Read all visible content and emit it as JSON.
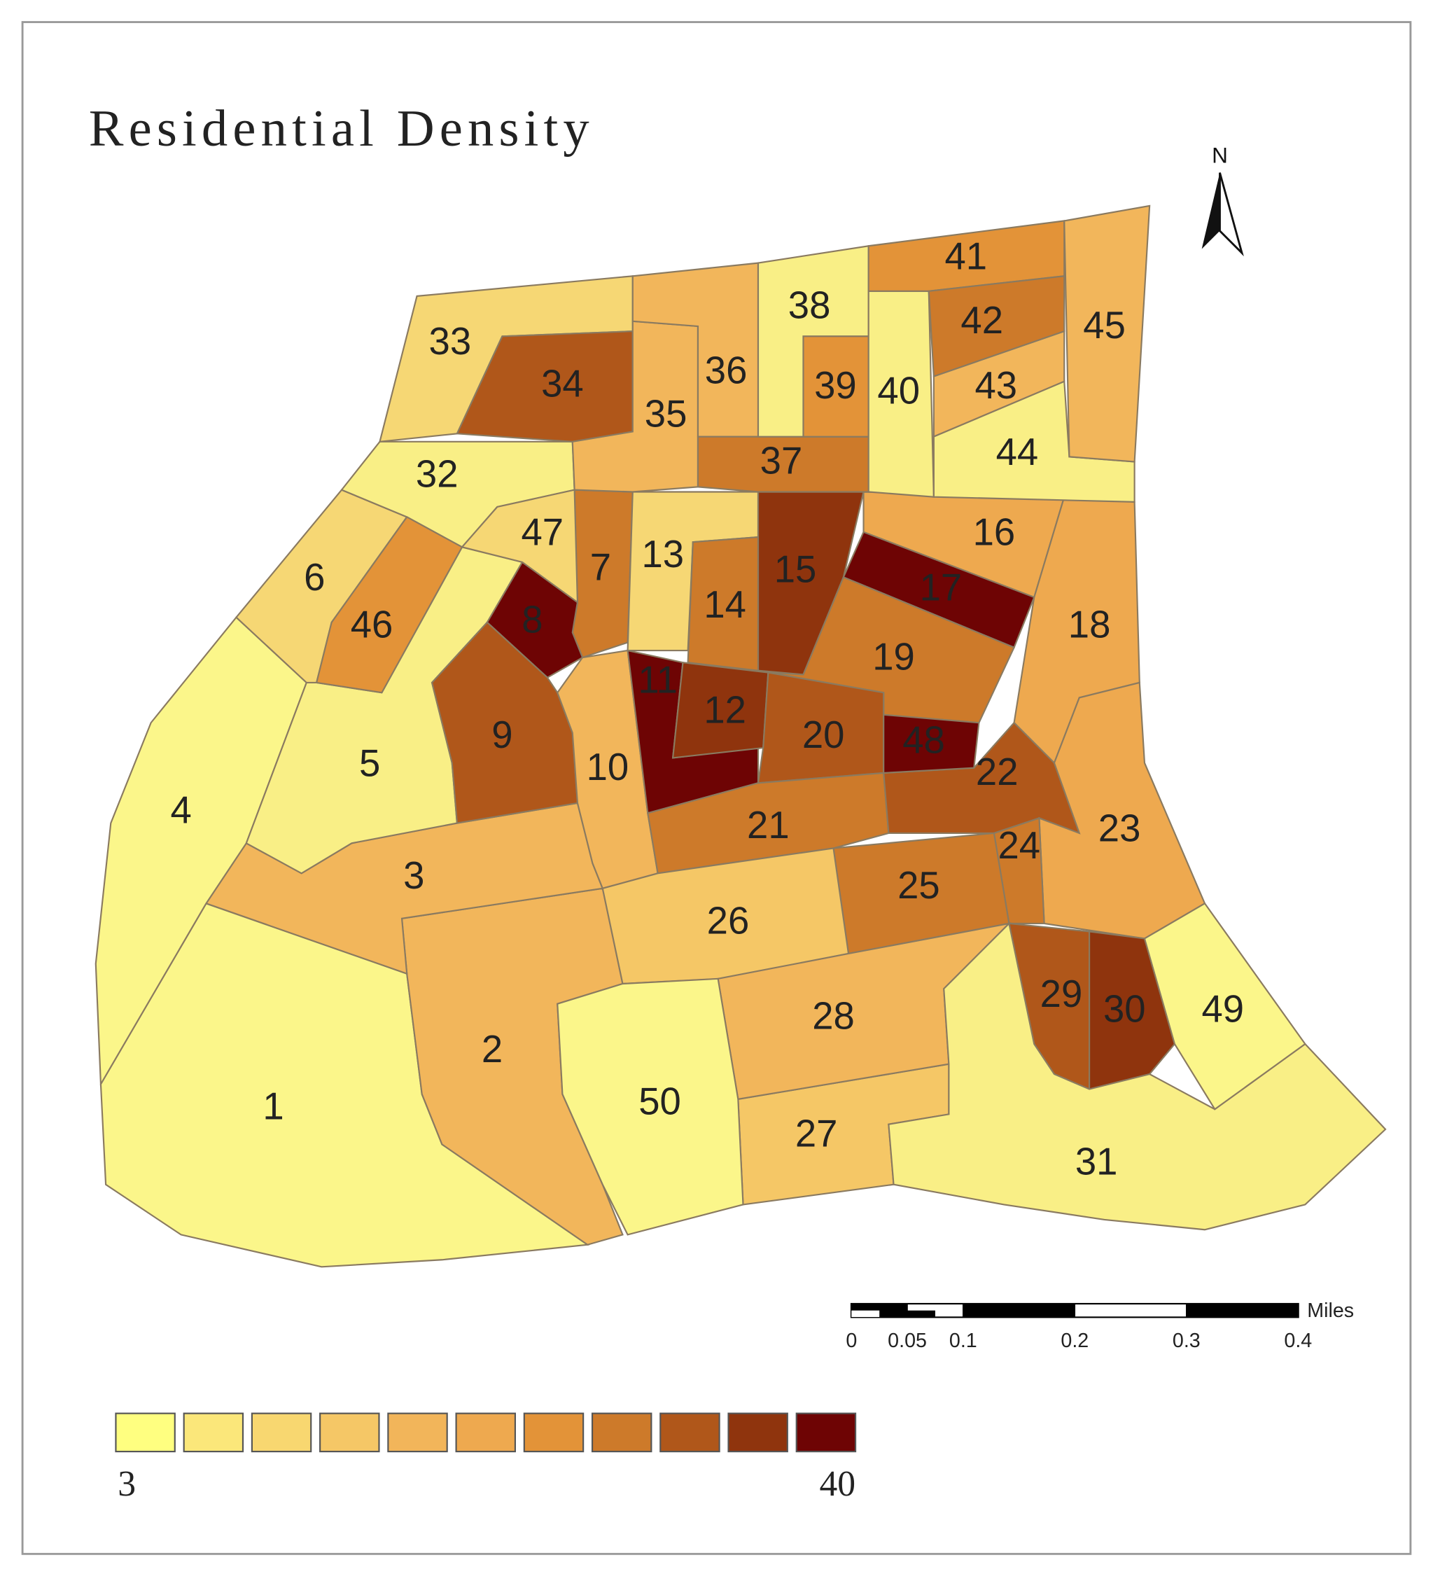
{
  "title": "Residential Density",
  "north": "N",
  "regions": [
    {
      "label": "1",
      "color": "#fbf68a"
    },
    {
      "label": "2",
      "color": "#f2b65b"
    },
    {
      "label": "3",
      "color": "#f2b65b"
    },
    {
      "label": "4",
      "color": "#fbf68a"
    },
    {
      "label": "5",
      "color": "#f9ef86"
    },
    {
      "label": "6",
      "color": "#f6d774"
    },
    {
      "label": "7",
      "color": "#cd7a2a"
    },
    {
      "label": "8",
      "color": "#6e0404"
    },
    {
      "label": "9",
      "color": "#b0571a"
    },
    {
      "label": "10",
      "color": "#f2b65b"
    },
    {
      "label": "11",
      "color": "#6e0404"
    },
    {
      "label": "12",
      "color": "#8f340d"
    },
    {
      "label": "13",
      "color": "#f6d774"
    },
    {
      "label": "14",
      "color": "#cd7a2a"
    },
    {
      "label": "15",
      "color": "#8f340d"
    },
    {
      "label": "16",
      "color": "#eea94f"
    },
    {
      "label": "17",
      "color": "#6e0404"
    },
    {
      "label": "18",
      "color": "#eea94f"
    },
    {
      "label": "19",
      "color": "#cd7a2a"
    },
    {
      "label": "20",
      "color": "#b0571a"
    },
    {
      "label": "21",
      "color": "#cd7a2a"
    },
    {
      "label": "22",
      "color": "#b0571a"
    },
    {
      "label": "23",
      "color": "#eea94f"
    },
    {
      "label": "24",
      "color": "#cd7a2a"
    },
    {
      "label": "25",
      "color": "#cd7a2a"
    },
    {
      "label": "26",
      "color": "#f5c766"
    },
    {
      "label": "27",
      "color": "#f5c766"
    },
    {
      "label": "28",
      "color": "#f2b65b"
    },
    {
      "label": "29",
      "color": "#b0571a"
    },
    {
      "label": "30",
      "color": "#8f340d"
    },
    {
      "label": "31",
      "color": "#f9ef86"
    },
    {
      "label": "32",
      "color": "#f9ef86"
    },
    {
      "label": "33",
      "color": "#f6d774"
    },
    {
      "label": "34",
      "color": "#b0571a"
    },
    {
      "label": "35",
      "color": "#f2b65b"
    },
    {
      "label": "36",
      "color": "#f2b65b"
    },
    {
      "label": "37",
      "color": "#cd7a2a"
    },
    {
      "label": "38",
      "color": "#f9ef86"
    },
    {
      "label": "39",
      "color": "#e39338"
    },
    {
      "label": "40",
      "color": "#f9ef86"
    },
    {
      "label": "41",
      "color": "#e39338"
    },
    {
      "label": "42",
      "color": "#cd7a2a"
    },
    {
      "label": "43",
      "color": "#f2b65b"
    },
    {
      "label": "44",
      "color": "#f9ef86"
    },
    {
      "label": "45",
      "color": "#f2b65b"
    },
    {
      "label": "46",
      "color": "#e39338"
    },
    {
      "label": "47",
      "color": "#f6d774"
    },
    {
      "label": "48",
      "color": "#6e0404"
    },
    {
      "label": "49",
      "color": "#fbf68a"
    },
    {
      "label": "50",
      "color": "#fbf68a"
    }
  ],
  "scale_bar": {
    "unit": "Miles",
    "ticks": [
      0,
      0.05,
      0.1,
      0.2,
      0.3,
      0.4
    ]
  },
  "legend": {
    "min": 3,
    "max": 40,
    "colors": [
      "#ffff80",
      "#fbe77a",
      "#f8d770",
      "#f5c766",
      "#f2b55a",
      "#eea94f",
      "#e39338",
      "#cd7a2a",
      "#b0571a",
      "#8f340d",
      "#6e0404"
    ]
  }
}
